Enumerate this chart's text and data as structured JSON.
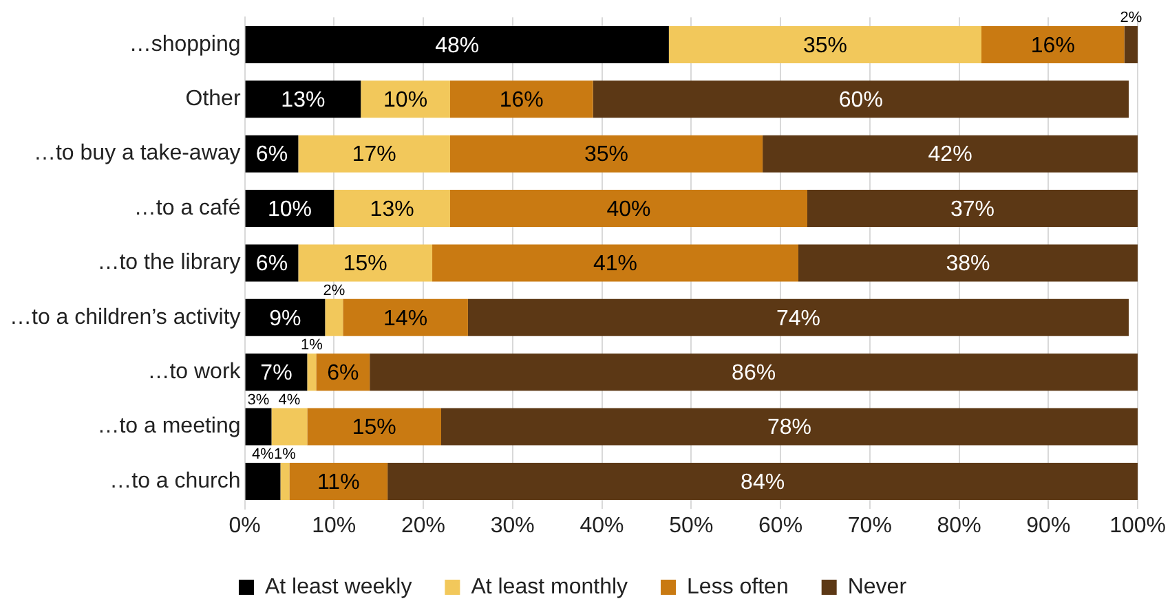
{
  "chart_data": {
    "type": "bar",
    "orientation": "horizontal",
    "stacked": true,
    "categories": [
      "…shopping",
      "Other",
      "…to buy a take-away",
      "…to a café",
      "…to the library",
      "…to a children’s activity",
      "…to work",
      "…to a meeting",
      "…to a church"
    ],
    "series": [
      {
        "name": "At least weekly",
        "color": "#000000",
        "values": [
          47.5,
          13,
          6,
          10,
          6,
          9,
          7,
          3,
          4
        ],
        "value_labels": [
          "48%",
          "13%",
          "6%",
          "10%",
          "6%",
          "9%",
          "7%",
          "3%",
          "4%"
        ]
      },
      {
        "name": "At least monthly",
        "color": "#f2c85b",
        "values": [
          35,
          10,
          17,
          13,
          15,
          2,
          1,
          4,
          1
        ],
        "value_labels": [
          "35%",
          "10%",
          "17%",
          "13%",
          "15%",
          "2%",
          "1%",
          "4%",
          "1%"
        ]
      },
      {
        "name": "Less often",
        "color": "#c97a12",
        "values": [
          16,
          16,
          35,
          40,
          41,
          14,
          6,
          15,
          11
        ],
        "value_labels": [
          "16%",
          "16%",
          "35%",
          "40%",
          "41%",
          "14%",
          "6%",
          "15%",
          "11%"
        ]
      },
      {
        "name": "Never",
        "color": "#5c3815",
        "values": [
          1.5,
          60,
          42,
          37,
          38,
          74,
          86,
          78,
          84
        ],
        "value_labels": [
          "2%",
          "60%",
          "42%",
          "37%",
          "38%",
          "74%",
          "86%",
          "78%",
          "84%"
        ]
      }
    ],
    "xlim": [
      0,
      100
    ],
    "xticks": [
      {
        "value": 0,
        "label": "0%"
      },
      {
        "value": 10,
        "label": "10%"
      },
      {
        "value": 20,
        "label": "20%"
      },
      {
        "value": 30,
        "label": "30%"
      },
      {
        "value": 40,
        "label": "40%"
      },
      {
        "value": 50,
        "label": "50%"
      },
      {
        "value": 60,
        "label": "60%"
      },
      {
        "value": 70,
        "label": "70%"
      },
      {
        "value": 80,
        "label": "80%"
      },
      {
        "value": 90,
        "label": "90%"
      },
      {
        "value": 100,
        "label": "100%"
      }
    ],
    "grid": "x",
    "legend": "bottom"
  }
}
